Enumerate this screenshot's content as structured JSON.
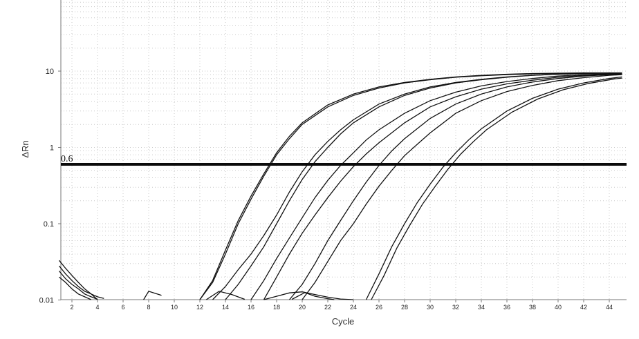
{
  "chart_data": {
    "type": "line",
    "title": "",
    "xlabel": "Cycle",
    "ylabel": "ΔRn",
    "y_scale": "log",
    "xlim": [
      1,
      45
    ],
    "ylim": [
      0.01,
      100
    ],
    "grid": true,
    "x_ticks": [
      2,
      4,
      6,
      8,
      10,
      12,
      14,
      16,
      18,
      20,
      22,
      24,
      26,
      28,
      30,
      32,
      34,
      36,
      38,
      40,
      42,
      44
    ],
    "y_ticks": [
      {
        "value": 0.01,
        "label": "0.01"
      },
      {
        "value": 0.1,
        "label": "0.1"
      },
      {
        "value": 1,
        "label": "1"
      },
      {
        "value": 10,
        "label": "10"
      }
    ],
    "threshold": {
      "value": 0.6,
      "label": "0.6"
    },
    "series": [
      {
        "x": [
          12,
          13,
          14,
          15,
          16,
          17,
          18,
          19,
          20,
          22,
          24,
          26,
          28,
          30,
          32,
          34,
          36,
          38,
          40,
          42,
          44,
          45
        ],
        "values": [
          0.01,
          0.018,
          0.045,
          0.11,
          0.23,
          0.45,
          0.85,
          1.4,
          2.1,
          3.6,
          5.0,
          6.2,
          7.1,
          7.8,
          8.4,
          8.8,
          9.1,
          9.3,
          9.4,
          9.5,
          9.5,
          9.5
        ]
      },
      {
        "x": [
          12,
          13,
          14,
          15,
          16,
          17,
          18,
          19,
          20,
          22,
          24,
          26,
          28,
          30,
          32,
          34,
          36,
          38,
          40,
          42,
          44,
          45
        ],
        "values": [
          0.01,
          0.017,
          0.04,
          0.1,
          0.21,
          0.42,
          0.8,
          1.3,
          2.0,
          3.4,
          4.8,
          6.0,
          7.0,
          7.7,
          8.3,
          8.7,
          9.0,
          9.2,
          9.3,
          9.4,
          9.4,
          9.4
        ]
      },
      {
        "x": [
          13,
          14,
          15,
          16,
          17,
          18,
          19,
          20,
          21,
          22,
          23,
          24,
          26,
          28,
          30,
          32,
          34,
          36,
          38,
          40,
          42,
          44,
          45
        ],
        "values": [
          0.01,
          0.015,
          0.025,
          0.04,
          0.07,
          0.13,
          0.26,
          0.48,
          0.8,
          1.2,
          1.7,
          2.3,
          3.7,
          5.0,
          6.2,
          7.1,
          7.8,
          8.4,
          8.8,
          9.1,
          9.3,
          9.4,
          9.4
        ]
      },
      {
        "x": [
          14,
          15,
          16,
          17,
          18,
          19,
          20,
          21,
          22,
          23,
          24,
          26,
          28,
          30,
          32,
          34,
          36,
          38,
          40,
          42,
          44,
          45
        ],
        "values": [
          0.01,
          0.016,
          0.028,
          0.05,
          0.1,
          0.2,
          0.38,
          0.65,
          1.0,
          1.5,
          2.1,
          3.4,
          4.8,
          6.0,
          7.0,
          7.7,
          8.3,
          8.8,
          9.1,
          9.3,
          9.4,
          9.4
        ]
      },
      {
        "x": [
          16,
          17,
          18,
          19,
          20,
          21,
          22,
          23,
          24,
          25,
          26,
          28,
          30,
          32,
          34,
          36,
          38,
          40,
          42,
          44,
          45
        ],
        "values": [
          0.01,
          0.018,
          0.035,
          0.065,
          0.12,
          0.22,
          0.37,
          0.58,
          0.85,
          1.25,
          1.7,
          2.8,
          4.1,
          5.3,
          6.4,
          7.3,
          8.0,
          8.6,
          9.0,
          9.2,
          9.3
        ]
      },
      {
        "x": [
          17,
          18,
          19,
          20,
          21,
          22,
          23,
          24,
          25,
          26,
          28,
          30,
          32,
          34,
          36,
          38,
          40,
          42,
          44,
          45
        ],
        "values": [
          0.01,
          0.02,
          0.04,
          0.075,
          0.13,
          0.22,
          0.36,
          0.56,
          0.82,
          1.15,
          2.1,
          3.4,
          4.6,
          5.8,
          6.8,
          7.6,
          8.3,
          8.8,
          9.1,
          9.2
        ]
      },
      {
        "x": [
          19,
          20,
          21,
          22,
          23,
          24,
          25,
          26,
          27,
          28,
          30,
          32,
          34,
          36,
          38,
          40,
          42,
          44,
          45
        ],
        "values": [
          0.01,
          0.016,
          0.03,
          0.06,
          0.11,
          0.2,
          0.35,
          0.58,
          0.9,
          1.3,
          2.4,
          3.7,
          5.0,
          6.2,
          7.2,
          8.0,
          8.6,
          9.0,
          9.1
        ]
      },
      {
        "x": [
          20,
          21,
          22,
          23,
          24,
          25,
          26,
          27,
          28,
          29,
          30,
          32,
          34,
          36,
          38,
          40,
          42,
          44,
          45
        ],
        "values": [
          0.01,
          0.017,
          0.032,
          0.06,
          0.1,
          0.18,
          0.31,
          0.5,
          0.78,
          1.1,
          1.55,
          2.8,
          4.1,
          5.4,
          6.5,
          7.5,
          8.2,
          8.8,
          9.0
        ]
      },
      {
        "x": [
          25,
          26,
          27,
          28,
          29,
          30,
          31,
          32,
          33,
          34,
          36,
          38,
          40,
          42,
          44,
          45
        ],
        "values": [
          0.01,
          0.022,
          0.05,
          0.1,
          0.19,
          0.33,
          0.55,
          0.85,
          1.25,
          1.75,
          3.0,
          4.4,
          5.8,
          7.0,
          8.0,
          8.4
        ]
      },
      {
        "x": [
          25.4,
          26.4,
          27.4,
          28.4,
          29.4,
          30.4,
          31.4,
          32.4,
          33.4,
          34.4,
          36.4,
          38.4,
          40.4,
          42.4,
          44.4,
          45
        ],
        "values": [
          0.01,
          0.021,
          0.048,
          0.095,
          0.18,
          0.31,
          0.52,
          0.82,
          1.2,
          1.7,
          2.9,
          4.3,
          5.7,
          6.9,
          7.9,
          8.1
        ]
      },
      {
        "x": [
          1,
          1.5,
          2,
          2.5,
          3,
          3.5,
          4
        ],
        "values": [
          0.033,
          0.026,
          0.021,
          0.017,
          0.014,
          0.012,
          0.01
        ]
      },
      {
        "x": [
          1,
          1.5,
          2,
          2.5,
          3,
          3.5,
          4,
          4.5
        ],
        "values": [
          0.028,
          0.022,
          0.018,
          0.015,
          0.013,
          0.012,
          0.011,
          0.0105
        ]
      },
      {
        "x": [
          1,
          1.5,
          2,
          2.5,
          3,
          3.5,
          4
        ],
        "values": [
          0.024,
          0.019,
          0.016,
          0.014,
          0.012,
          0.011,
          0.0102
        ]
      },
      {
        "x": [
          1,
          1.5,
          2,
          2.5,
          3,
          3.5
        ],
        "values": [
          0.02,
          0.017,
          0.014,
          0.012,
          0.011,
          0.0101
        ]
      },
      {
        "x": [
          7.6,
          8,
          9
        ],
        "values": [
          0.0101,
          0.013,
          0.0115
        ]
      },
      {
        "x": [
          12.5,
          13.5,
          14.5,
          15.5
        ],
        "values": [
          0.0101,
          0.013,
          0.0118,
          0.0102
        ]
      },
      {
        "x": [
          17,
          18,
          19,
          20,
          21,
          22,
          23,
          24
        ],
        "values": [
          0.0101,
          0.0112,
          0.0124,
          0.0128,
          0.0118,
          0.0109,
          0.0103,
          0.0101
        ]
      },
      {
        "x": [
          19.2,
          20.2,
          21,
          22,
          22.5
        ],
        "values": [
          0.0102,
          0.0125,
          0.0112,
          0.0104,
          0.0101
        ]
      }
    ]
  }
}
